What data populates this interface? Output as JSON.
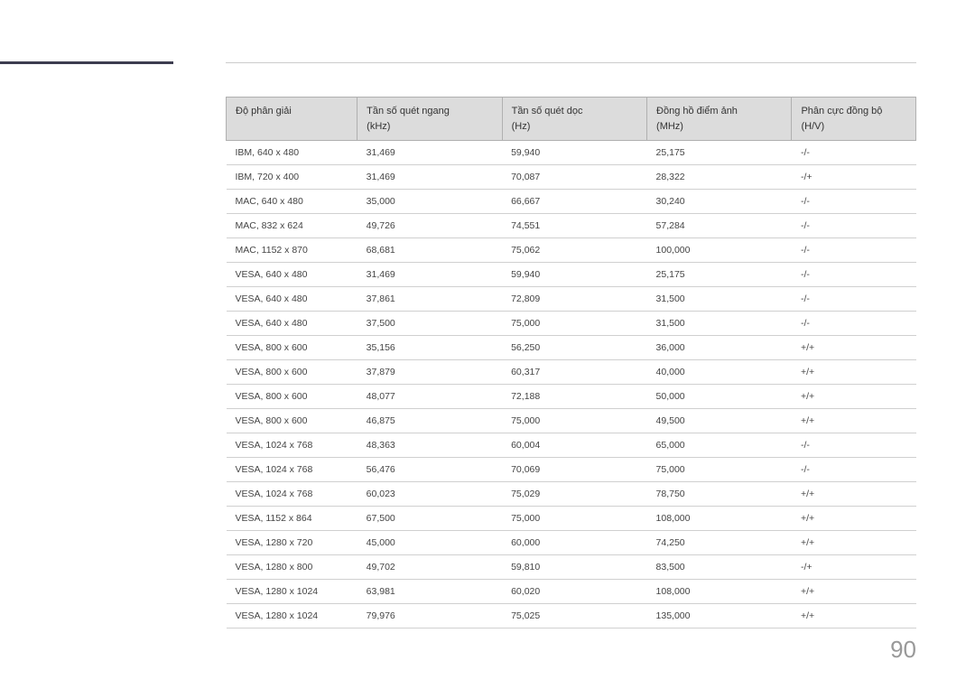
{
  "page_number": "90",
  "table": {
    "columns": [
      {
        "line1": "Độ phân giải",
        "line2": ""
      },
      {
        "line1": "Tần số quét ngang",
        "line2": "(kHz)"
      },
      {
        "line1": "Tần số quét dọc",
        "line2": "(Hz)"
      },
      {
        "line1": "Đồng hồ điểm ảnh",
        "line2": "(MHz)"
      },
      {
        "line1": "Phân cực đồng bộ",
        "line2": "(H/V)"
      }
    ],
    "rows": [
      [
        "IBM, 640 x 480",
        "31,469",
        "59,940",
        "25,175",
        "-/-"
      ],
      [
        "IBM, 720 x 400",
        "31,469",
        "70,087",
        "28,322",
        "-/+"
      ],
      [
        "MAC, 640 x 480",
        "35,000",
        "66,667",
        "30,240",
        "-/-"
      ],
      [
        "MAC, 832 x 624",
        "49,726",
        "74,551",
        "57,284",
        "-/-"
      ],
      [
        "MAC, 1152 x 870",
        "68,681",
        "75,062",
        "100,000",
        "-/-"
      ],
      [
        "VESA, 640 x 480",
        "31,469",
        "59,940",
        "25,175",
        "-/-"
      ],
      [
        "VESA, 640 x 480",
        "37,861",
        "72,809",
        "31,500",
        "-/-"
      ],
      [
        "VESA, 640 x 480",
        "37,500",
        "75,000",
        "31,500",
        "-/-"
      ],
      [
        "VESA, 800 x 600",
        "35,156",
        "56,250",
        "36,000",
        "+/+"
      ],
      [
        "VESA, 800 x 600",
        "37,879",
        "60,317",
        "40,000",
        "+/+"
      ],
      [
        "VESA, 800 x 600",
        "48,077",
        "72,188",
        "50,000",
        "+/+"
      ],
      [
        "VESA, 800 x 600",
        "46,875",
        "75,000",
        "49,500",
        "+/+"
      ],
      [
        "VESA, 1024 x 768",
        "48,363",
        "60,004",
        "65,000",
        "-/-"
      ],
      [
        "VESA, 1024 x 768",
        "56,476",
        "70,069",
        "75,000",
        "-/-"
      ],
      [
        "VESA, 1024 x 768",
        "60,023",
        "75,029",
        "78,750",
        "+/+"
      ],
      [
        "VESA, 1152 x 864",
        "67,500",
        "75,000",
        "108,000",
        "+/+"
      ],
      [
        "VESA, 1280 x 720",
        "45,000",
        "60,000",
        "74,250",
        "+/+"
      ],
      [
        "VESA, 1280 x 800",
        "49,702",
        "59,810",
        "83,500",
        "-/+"
      ],
      [
        "VESA, 1280 x 1024",
        "63,981",
        "60,020",
        "108,000",
        "+/+"
      ],
      [
        "VESA, 1280 x 1024",
        "79,976",
        "75,025",
        "135,000",
        "+/+"
      ]
    ]
  },
  "styling": {
    "background_color": "#ffffff",
    "header_bg": "#dcdcdc",
    "border_color": "#b0b0b0",
    "row_border_color": "#d0d0d0",
    "text_color": "#333333",
    "page_number_color": "#999999",
    "accent_line_color": "#3d3d50",
    "body_font_size": 10.5,
    "header_font_size": 11,
    "page_number_font_size": 26
  }
}
